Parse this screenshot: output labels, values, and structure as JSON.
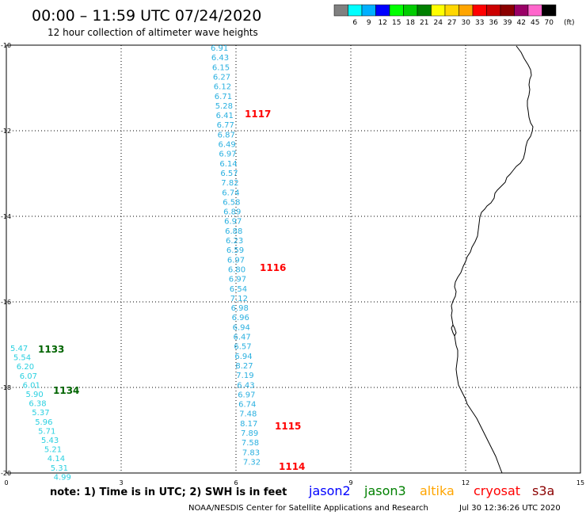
{
  "header": {
    "title": "00:00 – 11:59 UTC 07/24/2020",
    "subtitle": "12 hour collection of altimeter wave heights"
  },
  "legend": {
    "unit": "(ft)",
    "items": [
      {
        "label": "3",
        "color": "#808080"
      },
      {
        "label": "6",
        "color": "#00ffff"
      },
      {
        "label": "9",
        "color": "#00b0ff"
      },
      {
        "label": "12",
        "color": "#0000ff"
      },
      {
        "label": "15",
        "color": "#00ff00"
      },
      {
        "label": "18",
        "color": "#00cc00"
      },
      {
        "label": "21",
        "color": "#008000"
      },
      {
        "label": "24",
        "color": "#ffff00"
      },
      {
        "label": "27",
        "color": "#ffd700"
      },
      {
        "label": "30",
        "color": "#ffa500"
      },
      {
        "label": "33",
        "color": "#ff0000"
      },
      {
        "label": "36",
        "color": "#cc0000"
      },
      {
        "label": "39",
        "color": "#8b0000"
      },
      {
        "label": "42",
        "color": "#990066"
      },
      {
        "label": "45",
        "color": "#ff66cc"
      },
      {
        "label": "70",
        "color": "#000000"
      }
    ]
  },
  "axes": {
    "x_ticks": [
      "0",
      "3",
      "6",
      "9",
      "12",
      "15"
    ],
    "y_ticks": [
      "-10",
      "-12",
      "-14",
      "-16",
      "-18",
      "-20"
    ],
    "x_range": [
      0,
      15
    ],
    "y_range": [
      -10,
      -20
    ],
    "grid": "dotted"
  },
  "tracks": [
    {
      "satellite": "jason3",
      "color": "#2ab0e0",
      "values": [
        "6.91",
        "6.43",
        "6.15",
        "6.27",
        "6.12",
        "6.71",
        "5.28",
        "6.41",
        "6.77",
        "6.87",
        "6.49",
        "6.97",
        "6.14",
        "6.57",
        "7.82",
        "6.74",
        "6.58",
        "6.89",
        "6.97",
        "6.88",
        "6.23",
        "6.59",
        "6.97",
        "6.80",
        "6.97",
        "6.54",
        "7.12",
        "6.98",
        "6.96",
        "6.94",
        "6.47",
        "6.57",
        "6.94",
        "8.27",
        "7.19",
        "6.43",
        "6.97",
        "6.74",
        "7.48",
        "8.17",
        "7.89",
        "7.58",
        "7.83",
        "7.32"
      ]
    },
    {
      "satellite": "jason2",
      "color": "#2ad0e0",
      "values": [
        "5.47",
        "5.54",
        "6.20",
        "6.07",
        "6.01",
        "5.90",
        "6.38",
        "5.37",
        "5.96",
        "5.71",
        "5.43",
        "5.21",
        "4.14",
        "5.31",
        "4.99"
      ]
    }
  ],
  "time_labels": [
    {
      "text": "1117",
      "color": "#ff0000"
    },
    {
      "text": "1116",
      "color": "#ff0000"
    },
    {
      "text": "1115",
      "color": "#ff0000"
    },
    {
      "text": "1114",
      "color": "#ff0000"
    },
    {
      "text": "1133",
      "color": "#006400"
    },
    {
      "text": "1134",
      "color": "#006400"
    }
  ],
  "footer": {
    "note": "note: 1) Time is in UTC; 2) SWH is in feet",
    "satellites": [
      {
        "name": "jason2",
        "color": "#0000ff"
      },
      {
        "name": "jason3",
        "color": "#008000"
      },
      {
        "name": "altika",
        "color": "#ffa500"
      },
      {
        "name": "cryosat",
        "color": "#ff0000"
      },
      {
        "name": "s3a",
        "color": "#8b0000"
      }
    ],
    "credit": "NOAA/NESDIS Center for Satellite Applications and Research",
    "timestamp": "Jul 30 12:36:26 UTC 2020"
  }
}
